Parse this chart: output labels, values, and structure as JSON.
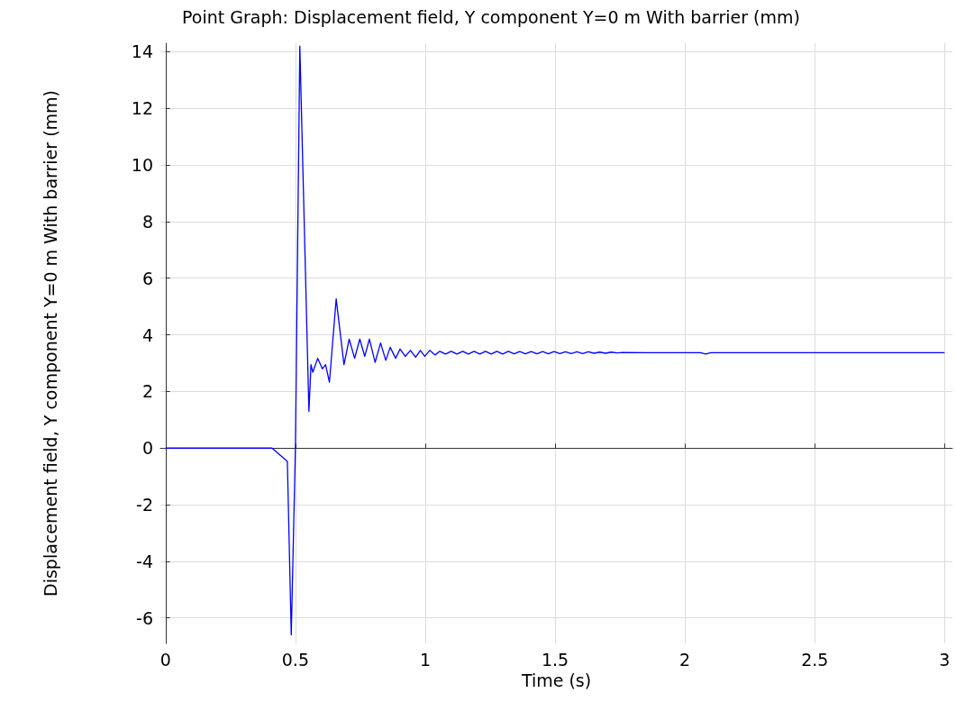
{
  "chart_data": {
    "type": "line",
    "title": "Point Graph: Displacement field, Y component Y=0 m With barrier (mm)",
    "xlabel": "Time (s)",
    "ylabel": "Displacement field, Y component Y=0 m With barrier (mm)",
    "series": [
      {
        "color": "#0000ff",
        "x": [
          0,
          0.41,
          0.469,
          0.484,
          0.5,
          0.517,
          0.552,
          0.56,
          0.567,
          0.586,
          0.604,
          0.616,
          0.631,
          0.657,
          0.687,
          0.707,
          0.728,
          0.748,
          0.767,
          0.785,
          0.807,
          0.828,
          0.848,
          0.865,
          0.886,
          0.903,
          0.923,
          0.943,
          0.963,
          0.981,
          0.998,
          1.017,
          1.038,
          1.056,
          1.078,
          1.1,
          1.122,
          1.144,
          1.166,
          1.188,
          1.21,
          1.232,
          1.254,
          1.276,
          1.298,
          1.32,
          1.342,
          1.364,
          1.386,
          1.408,
          1.43,
          1.452,
          1.474,
          1.496,
          1.518,
          1.54,
          1.562,
          1.584,
          1.606,
          1.628,
          1.65,
          1.672,
          1.694,
          1.716,
          1.738,
          1.76,
          1.85,
          2.06,
          2.08,
          2.1,
          3.0
        ],
        "values": [
          0,
          0,
          -0.47,
          -6.6,
          0,
          14.2,
          1.3,
          2.95,
          2.68,
          3.17,
          2.8,
          2.95,
          2.33,
          5.27,
          2.95,
          3.85,
          3.17,
          3.85,
          3.24,
          3.85,
          3.03,
          3.71,
          3.1,
          3.56,
          3.17,
          3.5,
          3.24,
          3.45,
          3.21,
          3.45,
          3.24,
          3.45,
          3.29,
          3.42,
          3.32,
          3.42,
          3.32,
          3.42,
          3.32,
          3.42,
          3.32,
          3.42,
          3.32,
          3.42,
          3.32,
          3.42,
          3.33,
          3.41,
          3.33,
          3.41,
          3.33,
          3.41,
          3.33,
          3.41,
          3.34,
          3.4,
          3.34,
          3.4,
          3.34,
          3.4,
          3.35,
          3.39,
          3.35,
          3.39,
          3.36,
          3.38,
          3.37,
          3.37,
          3.32,
          3.37,
          3.37
        ]
      }
    ],
    "xlim": [
      -0.02,
      3.03
    ],
    "xticks": [
      0,
      0.5,
      1,
      1.5,
      2,
      2.5,
      3
    ],
    "ylim": [
      -6.9,
      14.3
    ],
    "yticks": [
      -6,
      -4,
      -2,
      0,
      2,
      4,
      6,
      8,
      10,
      12,
      14
    ],
    "grid": true,
    "marker": "none",
    "line_style": "solid"
  }
}
